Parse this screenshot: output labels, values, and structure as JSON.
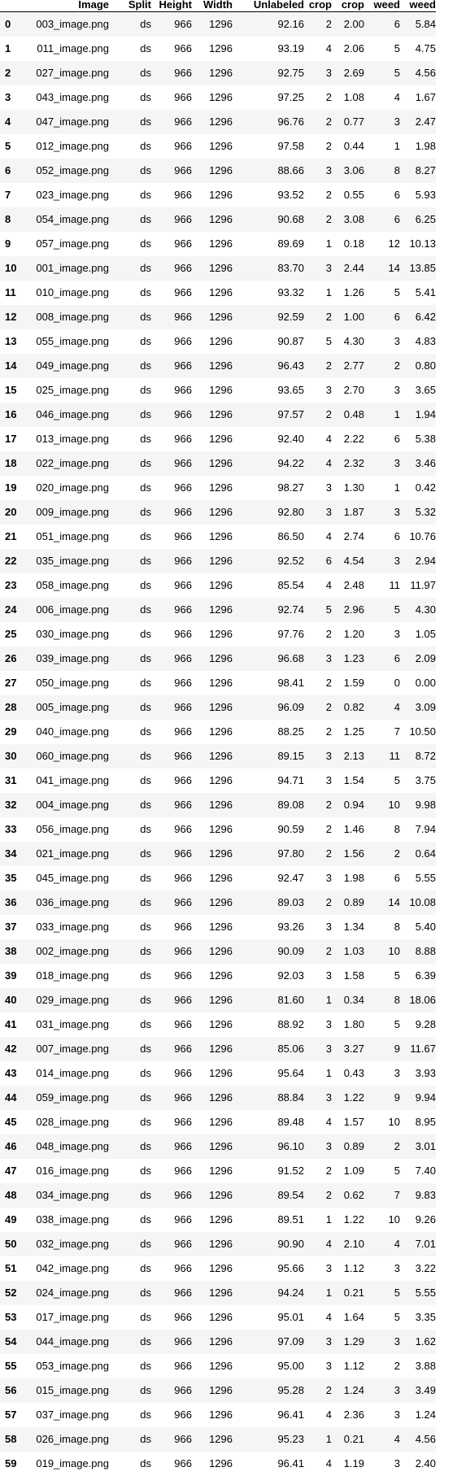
{
  "table": {
    "headers": [
      "",
      "Image",
      "Split",
      "Height",
      "Width",
      "Unlabeled",
      "crop",
      "crop",
      "weed",
      "weed"
    ],
    "rows": [
      [
        "0",
        "003_image.png",
        "ds",
        "966",
        "1296",
        "92.16",
        "2",
        "2.00",
        "6",
        "5.84"
      ],
      [
        "1",
        "011_image.png",
        "ds",
        "966",
        "1296",
        "93.19",
        "4",
        "2.06",
        "5",
        "4.75"
      ],
      [
        "2",
        "027_image.png",
        "ds",
        "966",
        "1296",
        "92.75",
        "3",
        "2.69",
        "5",
        "4.56"
      ],
      [
        "3",
        "043_image.png",
        "ds",
        "966",
        "1296",
        "97.25",
        "2",
        "1.08",
        "4",
        "1.67"
      ],
      [
        "4",
        "047_image.png",
        "ds",
        "966",
        "1296",
        "96.76",
        "2",
        "0.77",
        "3",
        "2.47"
      ],
      [
        "5",
        "012_image.png",
        "ds",
        "966",
        "1296",
        "97.58",
        "2",
        "0.44",
        "1",
        "1.98"
      ],
      [
        "6",
        "052_image.png",
        "ds",
        "966",
        "1296",
        "88.66",
        "3",
        "3.06",
        "8",
        "8.27"
      ],
      [
        "7",
        "023_image.png",
        "ds",
        "966",
        "1296",
        "93.52",
        "2",
        "0.55",
        "6",
        "5.93"
      ],
      [
        "8",
        "054_image.png",
        "ds",
        "966",
        "1296",
        "90.68",
        "2",
        "3.08",
        "6",
        "6.25"
      ],
      [
        "9",
        "057_image.png",
        "ds",
        "966",
        "1296",
        "89.69",
        "1",
        "0.18",
        "12",
        "10.13"
      ],
      [
        "10",
        "001_image.png",
        "ds",
        "966",
        "1296",
        "83.70",
        "3",
        "2.44",
        "14",
        "13.85"
      ],
      [
        "11",
        "010_image.png",
        "ds",
        "966",
        "1296",
        "93.32",
        "1",
        "1.26",
        "5",
        "5.41"
      ],
      [
        "12",
        "008_image.png",
        "ds",
        "966",
        "1296",
        "92.59",
        "2",
        "1.00",
        "6",
        "6.42"
      ],
      [
        "13",
        "055_image.png",
        "ds",
        "966",
        "1296",
        "90.87",
        "5",
        "4.30",
        "3",
        "4.83"
      ],
      [
        "14",
        "049_image.png",
        "ds",
        "966",
        "1296",
        "96.43",
        "2",
        "2.77",
        "2",
        "0.80"
      ],
      [
        "15",
        "025_image.png",
        "ds",
        "966",
        "1296",
        "93.65",
        "3",
        "2.70",
        "3",
        "3.65"
      ],
      [
        "16",
        "046_image.png",
        "ds",
        "966",
        "1296",
        "97.57",
        "2",
        "0.48",
        "1",
        "1.94"
      ],
      [
        "17",
        "013_image.png",
        "ds",
        "966",
        "1296",
        "92.40",
        "4",
        "2.22",
        "6",
        "5.38"
      ],
      [
        "18",
        "022_image.png",
        "ds",
        "966",
        "1296",
        "94.22",
        "4",
        "2.32",
        "3",
        "3.46"
      ],
      [
        "19",
        "020_image.png",
        "ds",
        "966",
        "1296",
        "98.27",
        "3",
        "1.30",
        "1",
        "0.42"
      ],
      [
        "20",
        "009_image.png",
        "ds",
        "966",
        "1296",
        "92.80",
        "3",
        "1.87",
        "3",
        "5.32"
      ],
      [
        "21",
        "051_image.png",
        "ds",
        "966",
        "1296",
        "86.50",
        "4",
        "2.74",
        "6",
        "10.76"
      ],
      [
        "22",
        "035_image.png",
        "ds",
        "966",
        "1296",
        "92.52",
        "6",
        "4.54",
        "3",
        "2.94"
      ],
      [
        "23",
        "058_image.png",
        "ds",
        "966",
        "1296",
        "85.54",
        "4",
        "2.48",
        "11",
        "11.97"
      ],
      [
        "24",
        "006_image.png",
        "ds",
        "966",
        "1296",
        "92.74",
        "5",
        "2.96",
        "5",
        "4.30"
      ],
      [
        "25",
        "030_image.png",
        "ds",
        "966",
        "1296",
        "97.76",
        "2",
        "1.20",
        "3",
        "1.05"
      ],
      [
        "26",
        "039_image.png",
        "ds",
        "966",
        "1296",
        "96.68",
        "3",
        "1.23",
        "6",
        "2.09"
      ],
      [
        "27",
        "050_image.png",
        "ds",
        "966",
        "1296",
        "98.41",
        "2",
        "1.59",
        "0",
        "0.00"
      ],
      [
        "28",
        "005_image.png",
        "ds",
        "966",
        "1296",
        "96.09",
        "2",
        "0.82",
        "4",
        "3.09"
      ],
      [
        "29",
        "040_image.png",
        "ds",
        "966",
        "1296",
        "88.25",
        "2",
        "1.25",
        "7",
        "10.50"
      ],
      [
        "30",
        "060_image.png",
        "ds",
        "966",
        "1296",
        "89.15",
        "3",
        "2.13",
        "11",
        "8.72"
      ],
      [
        "31",
        "041_image.png",
        "ds",
        "966",
        "1296",
        "94.71",
        "3",
        "1.54",
        "5",
        "3.75"
      ],
      [
        "32",
        "004_image.png",
        "ds",
        "966",
        "1296",
        "89.08",
        "2",
        "0.94",
        "10",
        "9.98"
      ],
      [
        "33",
        "056_image.png",
        "ds",
        "966",
        "1296",
        "90.59",
        "2",
        "1.46",
        "8",
        "7.94"
      ],
      [
        "34",
        "021_image.png",
        "ds",
        "966",
        "1296",
        "97.80",
        "2",
        "1.56",
        "2",
        "0.64"
      ],
      [
        "35",
        "045_image.png",
        "ds",
        "966",
        "1296",
        "92.47",
        "3",
        "1.98",
        "6",
        "5.55"
      ],
      [
        "36",
        "036_image.png",
        "ds",
        "966",
        "1296",
        "89.03",
        "2",
        "0.89",
        "14",
        "10.08"
      ],
      [
        "37",
        "033_image.png",
        "ds",
        "966",
        "1296",
        "93.26",
        "3",
        "1.34",
        "8",
        "5.40"
      ],
      [
        "38",
        "002_image.png",
        "ds",
        "966",
        "1296",
        "90.09",
        "2",
        "1.03",
        "10",
        "8.88"
      ],
      [
        "39",
        "018_image.png",
        "ds",
        "966",
        "1296",
        "92.03",
        "3",
        "1.58",
        "5",
        "6.39"
      ],
      [
        "40",
        "029_image.png",
        "ds",
        "966",
        "1296",
        "81.60",
        "1",
        "0.34",
        "8",
        "18.06"
      ],
      [
        "41",
        "031_image.png",
        "ds",
        "966",
        "1296",
        "88.92",
        "3",
        "1.80",
        "5",
        "9.28"
      ],
      [
        "42",
        "007_image.png",
        "ds",
        "966",
        "1296",
        "85.06",
        "3",
        "3.27",
        "9",
        "11.67"
      ],
      [
        "43",
        "014_image.png",
        "ds",
        "966",
        "1296",
        "95.64",
        "1",
        "0.43",
        "3",
        "3.93"
      ],
      [
        "44",
        "059_image.png",
        "ds",
        "966",
        "1296",
        "88.84",
        "3",
        "1.22",
        "9",
        "9.94"
      ],
      [
        "45",
        "028_image.png",
        "ds",
        "966",
        "1296",
        "89.48",
        "4",
        "1.57",
        "10",
        "8.95"
      ],
      [
        "46",
        "048_image.png",
        "ds",
        "966",
        "1296",
        "96.10",
        "3",
        "0.89",
        "2",
        "3.01"
      ],
      [
        "47",
        "016_image.png",
        "ds",
        "966",
        "1296",
        "91.52",
        "2",
        "1.09",
        "5",
        "7.40"
      ],
      [
        "48",
        "034_image.png",
        "ds",
        "966",
        "1296",
        "89.54",
        "2",
        "0.62",
        "7",
        "9.83"
      ],
      [
        "49",
        "038_image.png",
        "ds",
        "966",
        "1296",
        "89.51",
        "1",
        "1.22",
        "10",
        "9.26"
      ],
      [
        "50",
        "032_image.png",
        "ds",
        "966",
        "1296",
        "90.90",
        "4",
        "2.10",
        "4",
        "7.01"
      ],
      [
        "51",
        "042_image.png",
        "ds",
        "966",
        "1296",
        "95.66",
        "3",
        "1.12",
        "3",
        "3.22"
      ],
      [
        "52",
        "024_image.png",
        "ds",
        "966",
        "1296",
        "94.24",
        "1",
        "0.21",
        "5",
        "5.55"
      ],
      [
        "53",
        "017_image.png",
        "ds",
        "966",
        "1296",
        "95.01",
        "4",
        "1.64",
        "5",
        "3.35"
      ],
      [
        "54",
        "044_image.png",
        "ds",
        "966",
        "1296",
        "97.09",
        "3",
        "1.29",
        "3",
        "1.62"
      ],
      [
        "55",
        "053_image.png",
        "ds",
        "966",
        "1296",
        "95.00",
        "3",
        "1.12",
        "2",
        "3.88"
      ],
      [
        "56",
        "015_image.png",
        "ds",
        "966",
        "1296",
        "95.28",
        "2",
        "1.24",
        "3",
        "3.49"
      ],
      [
        "57",
        "037_image.png",
        "ds",
        "966",
        "1296",
        "96.41",
        "4",
        "2.36",
        "3",
        "1.24"
      ],
      [
        "58",
        "026_image.png",
        "ds",
        "966",
        "1296",
        "95.23",
        "1",
        "0.21",
        "4",
        "4.56"
      ],
      [
        "59",
        "019_image.png",
        "ds",
        "966",
        "1296",
        "96.41",
        "4",
        "1.19",
        "3",
        "2.40"
      ]
    ]
  }
}
